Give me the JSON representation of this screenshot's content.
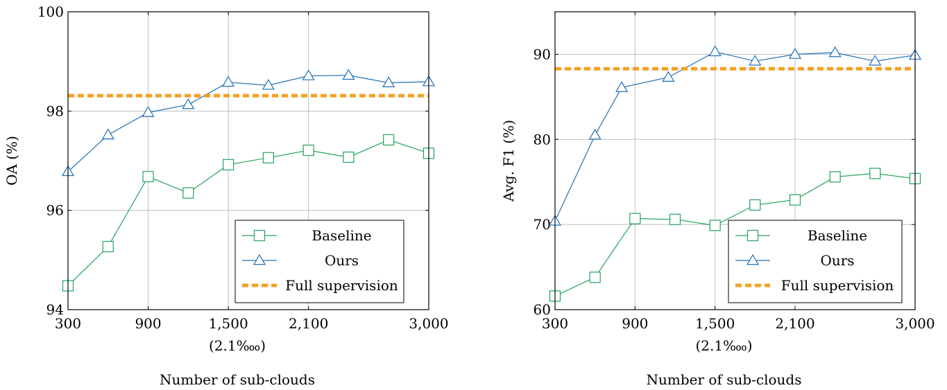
{
  "chart_data": [
    {
      "type": "line",
      "xlabel": "Number of sub-clouds",
      "xnote": "(2.1‱)",
      "ylabel": "OA (%)",
      "xlim": [
        300,
        3000
      ],
      "ylim": [
        94,
        100
      ],
      "xticks": [
        300,
        900,
        1500,
        2100,
        3000
      ],
      "xtick_labels": [
        "300",
        "900",
        "1,500",
        "2,100",
        "3,000"
      ],
      "yticks": [
        94,
        96,
        98,
        100
      ],
      "ytick_labels": [
        "94",
        "96",
        "98",
        "100"
      ],
      "grid": true,
      "legend_position": "lower-right",
      "series": [
        {
          "name": "Baseline",
          "color": "#22a35a",
          "marker": "square",
          "x": [
            300,
            600,
            900,
            1200,
            1500,
            1800,
            2100,
            2400,
            2700,
            3000
          ],
          "y": [
            94.48,
            95.27,
            96.68,
            96.35,
            96.92,
            97.06,
            97.21,
            97.07,
            97.42,
            97.15
          ]
        },
        {
          "name": "Ours",
          "color": "#1f6fb4",
          "marker": "triangle",
          "x": [
            300,
            600,
            900,
            1200,
            1500,
            1800,
            2100,
            2400,
            2700,
            3000
          ],
          "y": [
            96.78,
            97.52,
            97.97,
            98.13,
            98.58,
            98.52,
            98.71,
            98.72,
            98.57,
            98.59
          ]
        },
        {
          "name": "Full supervision",
          "color": "#f5a021",
          "style": "dashed",
          "x": [
            300,
            3000
          ],
          "y": [
            98.31,
            98.31
          ]
        }
      ]
    },
    {
      "type": "line",
      "xlabel": "Number of sub-clouds",
      "xnote": "(2.1‱)",
      "ylabel": "Avg. F1 (%)",
      "xlim": [
        300,
        3000
      ],
      "ylim": [
        60,
        95
      ],
      "xticks": [
        300,
        900,
        1500,
        2100,
        3000
      ],
      "xtick_labels": [
        "300",
        "900",
        "1,500",
        "2,100",
        "3,000"
      ],
      "yticks": [
        60,
        70,
        80,
        90
      ],
      "ytick_labels": [
        "60",
        "70",
        "80",
        "90"
      ],
      "grid": true,
      "legend_position": "lower-right",
      "series": [
        {
          "name": "Baseline",
          "color": "#22a35a",
          "marker": "square",
          "x": [
            300,
            600,
            900,
            1200,
            1500,
            1800,
            2100,
            2400,
            2700,
            3000
          ],
          "y": [
            61.6,
            63.8,
            70.7,
            70.6,
            69.9,
            72.3,
            72.9,
            75.6,
            76.0,
            75.4
          ]
        },
        {
          "name": "Ours",
          "color": "#1f6fb4",
          "marker": "triangle",
          "x": [
            300,
            600,
            800,
            1150,
            1500,
            1800,
            2100,
            2400,
            2700,
            3000
          ],
          "y": [
            70.4,
            80.5,
            86.1,
            87.3,
            90.3,
            89.2,
            90.0,
            90.2,
            89.2,
            89.9
          ]
        },
        {
          "name": "Full supervision",
          "color": "#f5a021",
          "style": "dashed",
          "x": [
            300,
            3000
          ],
          "y": [
            88.3,
            88.3
          ]
        }
      ]
    }
  ]
}
